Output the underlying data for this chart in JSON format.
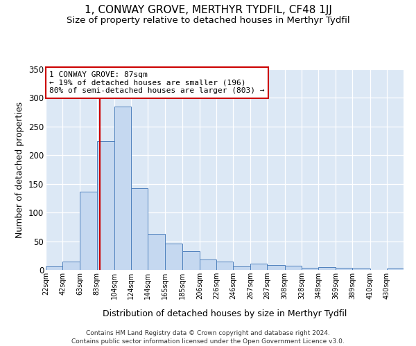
{
  "title": "1, CONWAY GROVE, MERTHYR TYDFIL, CF48 1JJ",
  "subtitle": "Size of property relative to detached houses in Merthyr Tydfil",
  "xlabel": "Distribution of detached houses by size in Merthyr Tydfil",
  "ylabel": "Number of detached properties",
  "footer": "Contains HM Land Registry data © Crown copyright and database right 2024.\nContains public sector information licensed under the Open Government Licence v3.0.",
  "bin_labels": [
    "22sqm",
    "42sqm",
    "63sqm",
    "83sqm",
    "104sqm",
    "124sqm",
    "144sqm",
    "165sqm",
    "185sqm",
    "206sqm",
    "226sqm",
    "246sqm",
    "267sqm",
    "287sqm",
    "308sqm",
    "328sqm",
    "348sqm",
    "369sqm",
    "389sqm",
    "410sqm",
    "430sqm"
  ],
  "bar_heights": [
    6,
    14,
    136,
    224,
    285,
    143,
    63,
    46,
    32,
    18,
    15,
    6,
    11,
    8,
    7,
    4,
    5,
    4,
    3,
    0,
    3
  ],
  "bar_color": "#c5d8f0",
  "bar_edge_color": "#4f81bd",
  "annotation_text": "1 CONWAY GROVE: 87sqm\n← 19% of detached houses are smaller (196)\n80% of semi-detached houses are larger (803) →",
  "annotation_box_color": "#ffffff",
  "annotation_box_edge": "#cc0000",
  "property_line_x": 87,
  "property_line_color": "#cc0000",
  "ylim": [
    0,
    350
  ],
  "yticks": [
    0,
    50,
    100,
    150,
    200,
    250,
    300,
    350
  ],
  "background_color": "#dce8f5",
  "title_fontsize": 11,
  "subtitle_fontsize": 9.5,
  "xlabel_fontsize": 9,
  "ylabel_fontsize": 9,
  "bin_edges": [
    22,
    42,
    63,
    83,
    104,
    124,
    144,
    165,
    185,
    206,
    226,
    246,
    267,
    287,
    308,
    328,
    348,
    369,
    389,
    410,
    430
  ]
}
